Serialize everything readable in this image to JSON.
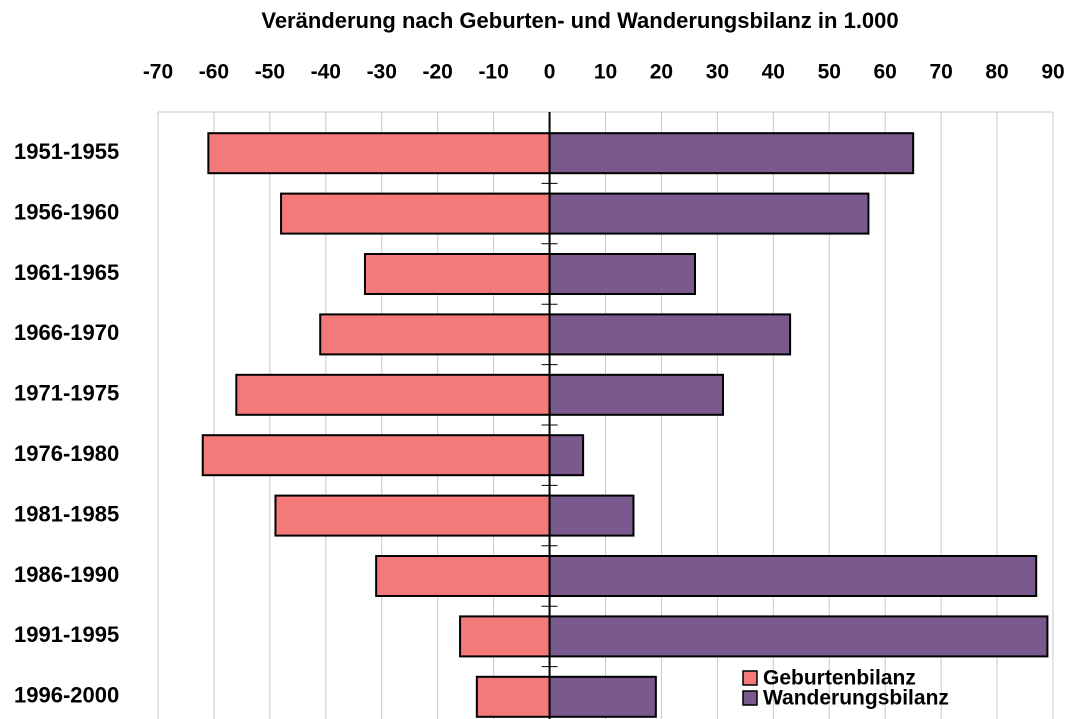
{
  "chart_data": {
    "type": "bar",
    "orientation": "horizontal",
    "title": "Veränderung nach Geburten- und Wanderungsbilanz in 1.000",
    "categories": [
      "1951-1955",
      "1956-1960",
      "1961-1965",
      "1966-1970",
      "1971-1975",
      "1976-1980",
      "1981-1985",
      "1986-1990",
      "1991-1995",
      "1996-2000"
    ],
    "series": [
      {
        "name": "Geburtenbilanz",
        "color": "#f47a7a",
        "values": [
          -61,
          -48,
          -33,
          -41,
          -56,
          -62,
          -49,
          -31,
          -16,
          -13
        ]
      },
      {
        "name": "Wanderungsbilanz",
        "color": "#7a5a8e",
        "values": [
          65,
          57,
          26,
          43,
          31,
          6,
          15,
          87,
          89,
          19
        ]
      }
    ],
    "xlim": [
      -70,
      90
    ],
    "xticks": [
      -70,
      -60,
      -50,
      -40,
      -30,
      -20,
      -10,
      0,
      10,
      20,
      30,
      40,
      50,
      60,
      70,
      80,
      90
    ],
    "grid": true,
    "legend": "lower right"
  }
}
